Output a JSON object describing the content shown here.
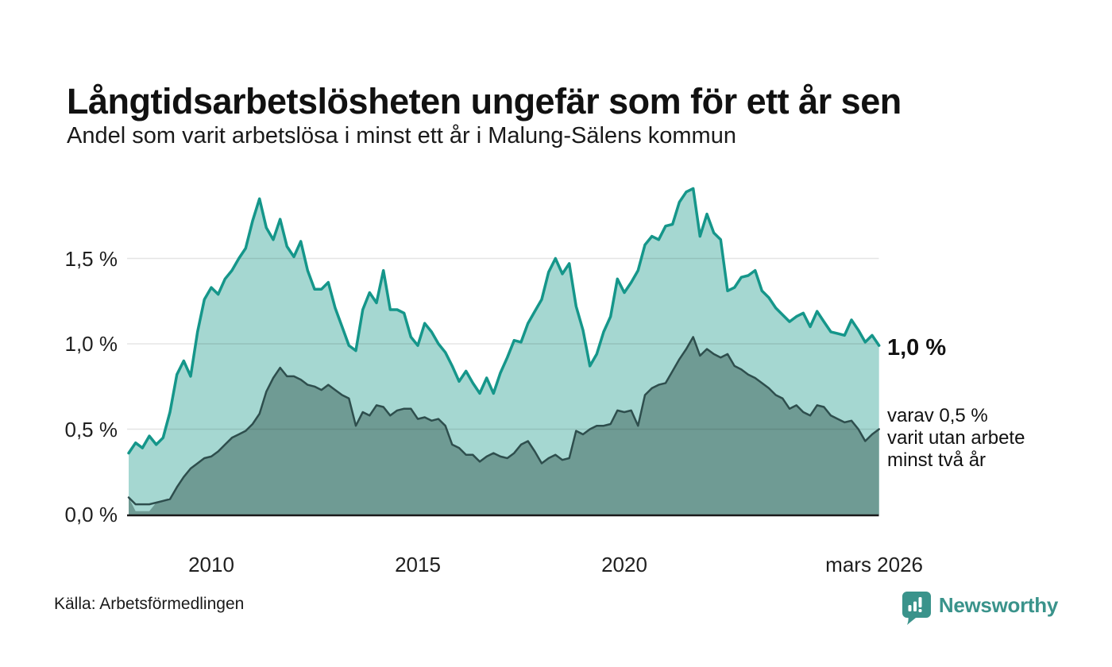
{
  "header": {
    "title": "Långtidsarbetslösheten ungefär som för ett år sen",
    "subtitle": "Andel som varit arbetslösa i minst ett år i Malung-Sälens kommun"
  },
  "chart_data": {
    "type": "area",
    "title": "Långtidsarbetslösheten ungefär som för ett år sen",
    "subtitle": "Andel som varit arbetslösa i minst ett år i Malung-Sälens kommun",
    "unit": "%",
    "x_start": 2008.0,
    "x_step": 0.166667,
    "x_end_label": "mars 2026",
    "x_axis": {
      "ticks": [
        {
          "label": "2010",
          "year": 2010
        },
        {
          "label": "2015",
          "year": 2015
        },
        {
          "label": "2020",
          "year": 2020
        },
        {
          "label": "mars 2026",
          "year": 2026.05
        }
      ]
    },
    "y_axis": {
      "ticks": [
        {
          "label": "0,0 %",
          "value": 0
        },
        {
          "label": "0,5 %",
          "value": 0.5
        },
        {
          "label": "1,0 %",
          "value": 1.0
        },
        {
          "label": "1,5 %",
          "value": 1.5
        }
      ],
      "range": [
        0,
        2.0
      ],
      "grid": true
    },
    "legend_position": "right-annotations",
    "series": [
      {
        "name": "Andel arbetslösa minst ett år",
        "line_color": "#15968a",
        "fill_color": "#a5d7d1",
        "line_width": 3.5,
        "end_value": 1.0,
        "end_label": "1,0 %",
        "values": [
          0.36,
          0.42,
          0.39,
          0.46,
          0.41,
          0.45,
          0.6,
          0.82,
          0.9,
          0.81,
          1.07,
          1.26,
          1.33,
          1.29,
          1.38,
          1.43,
          1.5,
          1.56,
          1.72,
          1.85,
          1.68,
          1.61,
          1.73,
          1.57,
          1.51,
          1.6,
          1.43,
          1.32,
          1.32,
          1.36,
          1.21,
          1.1,
          0.99,
          0.96,
          1.2,
          1.3,
          1.24,
          1.43,
          1.2,
          1.2,
          1.18,
          1.04,
          0.99,
          1.12,
          1.07,
          1.0,
          0.95,
          0.87,
          0.78,
          0.84,
          0.77,
          0.71,
          0.8,
          0.71,
          0.83,
          0.92,
          1.02,
          1.01,
          1.12,
          1.19,
          1.26,
          1.42,
          1.5,
          1.41,
          1.47,
          1.22,
          1.08,
          0.87,
          0.94,
          1.07,
          1.16,
          1.38,
          1.3,
          1.36,
          1.43,
          1.58,
          1.63,
          1.61,
          1.69,
          1.7,
          1.83,
          1.89,
          1.91,
          1.63,
          1.76,
          1.65,
          1.61,
          1.31,
          1.33,
          1.39,
          1.4,
          1.43,
          1.31,
          1.27,
          1.21,
          1.17,
          1.13,
          1.16,
          1.18,
          1.1,
          1.19,
          1.13,
          1.07,
          1.06,
          1.05,
          1.14,
          1.08,
          1.01,
          1.05,
          0.99
        ]
      },
      {
        "name": "varav utan arbete minst två år",
        "line_color": "#2e4e4d",
        "fill_color": "#6f9b94",
        "line_width": 2.5,
        "end_value": 0.5,
        "end_label": "varav 0,5 % varit utan arbete minst två år",
        "area_head": [
          0.1,
          0.02,
          0.02,
          0.02
        ],
        "values": [
          0.1,
          0.06,
          0.06,
          0.06,
          0.07,
          0.08,
          0.09,
          0.16,
          0.22,
          0.27,
          0.3,
          0.33,
          0.34,
          0.37,
          0.41,
          0.45,
          0.47,
          0.49,
          0.53,
          0.59,
          0.72,
          0.8,
          0.86,
          0.81,
          0.81,
          0.79,
          0.76,
          0.75,
          0.73,
          0.76,
          0.73,
          0.7,
          0.68,
          0.52,
          0.6,
          0.58,
          0.64,
          0.63,
          0.58,
          0.61,
          0.62,
          0.62,
          0.56,
          0.57,
          0.55,
          0.56,
          0.52,
          0.41,
          0.39,
          0.35,
          0.35,
          0.31,
          0.34,
          0.36,
          0.34,
          0.33,
          0.36,
          0.41,
          0.43,
          0.37,
          0.3,
          0.33,
          0.35,
          0.32,
          0.33,
          0.49,
          0.47,
          0.5,
          0.52,
          0.52,
          0.53,
          0.61,
          0.6,
          0.61,
          0.52,
          0.7,
          0.74,
          0.76,
          0.77,
          0.84,
          0.91,
          0.97,
          1.04,
          0.93,
          0.97,
          0.94,
          0.92,
          0.94,
          0.87,
          0.85,
          0.82,
          0.8,
          0.77,
          0.74,
          0.7,
          0.68,
          0.62,
          0.64,
          0.6,
          0.58,
          0.64,
          0.63,
          0.58,
          0.56,
          0.54,
          0.55,
          0.5,
          0.43,
          0.47,
          0.5
        ]
      }
    ]
  },
  "annotations": {
    "end_value_label": "1,0 %",
    "sub_lines": [
      "varav 0,5 %",
      "varit utan arbete",
      "minst två år"
    ]
  },
  "footer": {
    "source": "Källa: Arbetsförmedlingen",
    "brand": "Newsworthy"
  },
  "colors": {
    "series1_line": "#15968a",
    "series1_fill": "#a5d7d1",
    "series2_line": "#2e4e4d",
    "series2_fill": "#6f9b94",
    "gridline": "rgba(0,0,0,0.10)",
    "axis": "#1a1a1a",
    "brand_teal": "#3a938b"
  }
}
